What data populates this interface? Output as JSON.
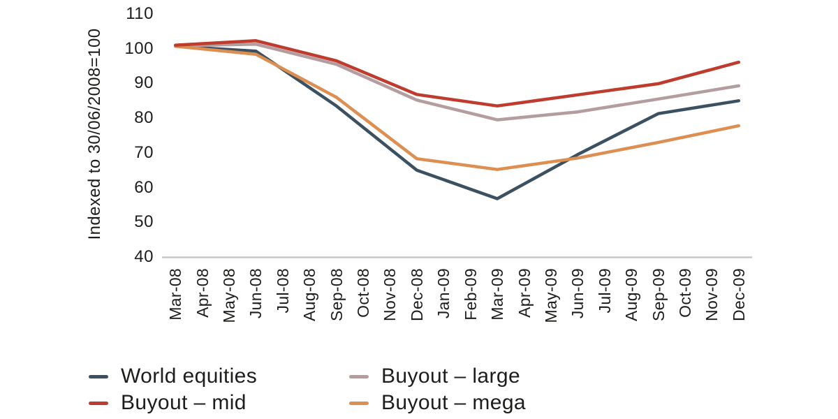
{
  "chart_data": {
    "type": "line",
    "title": "",
    "xlabel": "",
    "ylabel": "Indexed to 30/06/2008=100",
    "categories": [
      "Mar-08",
      "Apr-08",
      "May-08",
      "Jun-08",
      "Jul-08",
      "Aug-08",
      "Sep-08",
      "Oct-08",
      "Nov-08",
      "Dec-08",
      "Jan-09",
      "Feb-09",
      "Mar-09",
      "Apr-09",
      "May-09",
      "Jun-09",
      "Jul-09",
      "Aug-09",
      "Sep-09",
      "Oct-09",
      "Nov-09",
      "Dec-09"
    ],
    "y_ticks": [
      "110",
      "100",
      "90",
      "80",
      "70",
      "60",
      "50",
      "40"
    ],
    "ylim": [
      40,
      110
    ],
    "grid": false,
    "legend_position": "bottom",
    "series": [
      {
        "name": "World equities",
        "color": "#3b5162",
        "x_indices": [
          0,
          3,
          6,
          9,
          12,
          15,
          18,
          21
        ],
        "values": [
          100.7,
          99.3,
          83.5,
          65.0,
          56.8,
          69.5,
          81.3,
          85.0
        ]
      },
      {
        "name": "Buyout – mid",
        "color": "#bf3b2d",
        "x_indices": [
          0,
          3,
          6,
          9,
          12,
          15,
          18,
          21
        ],
        "values": [
          101.0,
          102.3,
          96.5,
          86.8,
          83.5,
          86.7,
          89.9,
          96.1
        ]
      },
      {
        "name": "Buyout – large",
        "color": "#b39d9f",
        "x_indices": [
          0,
          3,
          6,
          9,
          12,
          15,
          18,
          21
        ],
        "values": [
          100.8,
          101.3,
          95.5,
          85.2,
          79.5,
          81.8,
          85.5,
          89.3
        ]
      },
      {
        "name": "Buyout – mega",
        "color": "#dd8f52",
        "x_indices": [
          0,
          3,
          6,
          9,
          12,
          15,
          18,
          21
        ],
        "values": [
          100.7,
          98.4,
          86.0,
          68.3,
          65.2,
          68.5,
          73.0,
          77.8
        ]
      }
    ],
    "draw_order": [
      "World equities",
      "Buyout – large",
      "Buyout – mega",
      "Buyout – mid"
    ]
  },
  "axis": {
    "line_color": "#c8c8c8",
    "text_color": "#1d1d1b"
  },
  "legend": {
    "items": [
      {
        "label": "World equities",
        "color": "#3b5162"
      },
      {
        "label": "Buyout – large",
        "color": "#b39d9f"
      },
      {
        "label": "Buyout – mid",
        "color": "#bf3b2d"
      },
      {
        "label": "Buyout – mega",
        "color": "#dd8f52"
      }
    ]
  }
}
